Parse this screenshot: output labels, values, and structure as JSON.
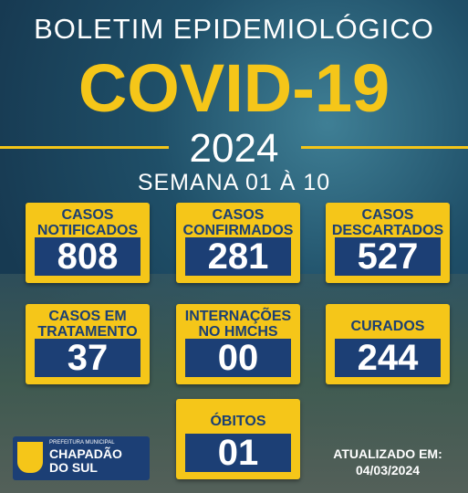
{
  "header": {
    "title": "BOLETIM EPIDEMIOLÓGICO",
    "headline": "COVID-19",
    "year": "2024",
    "period": "SEMANA 01 À 10"
  },
  "cards": [
    {
      "label": [
        "CASOS",
        "NOTIFICADOS"
      ],
      "value": "808"
    },
    {
      "label": [
        "CASOS",
        "CONFIRMADOS"
      ],
      "value": "281"
    },
    {
      "label": [
        "CASOS",
        "DESCARTADOS"
      ],
      "value": "527"
    },
    {
      "label": [
        "CASOS EM",
        "TRATAMENTO"
      ],
      "value": "37"
    },
    {
      "label": [
        "INTERNAÇÕES",
        "NO HMCHS"
      ],
      "value": "00"
    },
    {
      "label": [
        "CURADOS"
      ],
      "value": "244"
    },
    {
      "label": [
        "ÓBITOS"
      ],
      "value": "01"
    }
  ],
  "footer": {
    "org_top": "PREFEITURA MUNICIPAL",
    "org_name": [
      "CHAPADÃO",
      "DO SUL"
    ],
    "updated_label": "ATUALIZADO EM:",
    "updated_date": "04/03/2024"
  }
}
